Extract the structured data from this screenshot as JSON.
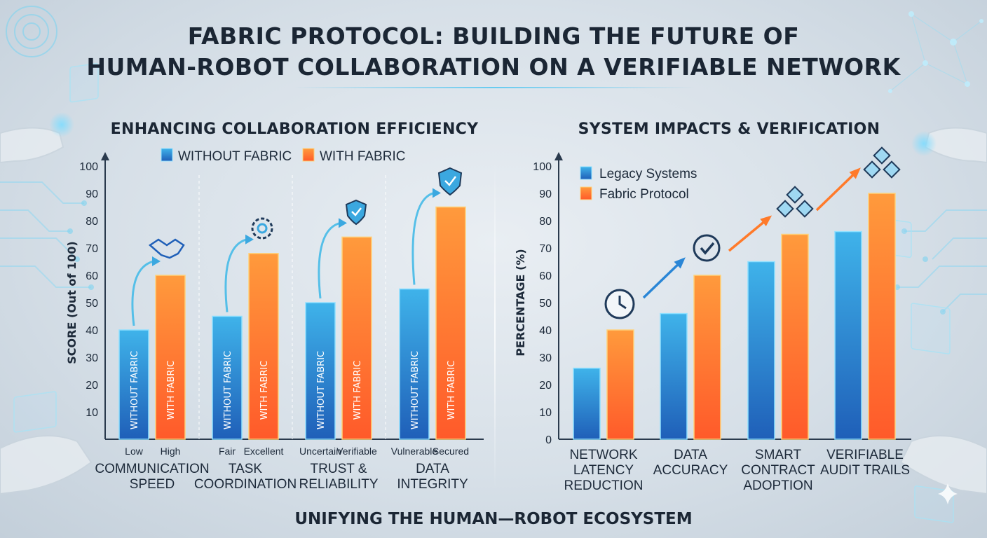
{
  "page": {
    "title_line_1": "FABRIC PROTOCOL: BUILDING THE FUTURE OF",
    "title_line_2": "HUMAN-ROBOT COLLABORATION ON A VERIFIABLE NETWORK",
    "footer": "UNIFYING THE HUMAN—ROBOT ECOSYSTEM"
  },
  "colors": {
    "blue": "#2a86d6",
    "orange": "#ff7a2a",
    "accent": "#5ac8f0"
  },
  "icons": [
    "handshake-icon",
    "gear-icon",
    "shield-check-icon",
    "shield-check-icon",
    "clock-icon",
    "check-icon",
    "blocks-icon",
    "blocks-icon"
  ],
  "chart_data": [
    {
      "type": "bar",
      "title": "ENHANCING COLLABORATION EFFICIENCY",
      "ylabel": "SCORE (Out of 100)",
      "xlabel": "",
      "ylim": [
        0,
        100
      ],
      "yticks": [
        10,
        20,
        30,
        40,
        50,
        60,
        70,
        80,
        90,
        100
      ],
      "legend_position": "top",
      "grid": false,
      "categories": [
        {
          "lines": [
            "COMMUNICATION",
            "SPEED"
          ],
          "sub_labels": [
            "Low",
            "High"
          ]
        },
        {
          "lines": [
            "TASK",
            "COORDINATION"
          ],
          "sub_labels": [
            "Fair",
            "Excellent"
          ]
        },
        {
          "lines": [
            "TRUST &",
            "RELIABILITY"
          ],
          "sub_labels": [
            "Uncertain",
            "Verifiable"
          ]
        },
        {
          "lines": [
            "DATA",
            "INTEGRITY"
          ],
          "sub_labels": [
            "Vulnerable",
            "Secured"
          ]
        }
      ],
      "series": [
        {
          "name": "WITHOUT FABRIC",
          "bar_label": "WITHOUT FABRIC",
          "color": "#2a86d6",
          "values": [
            40,
            45,
            50,
            55
          ]
        },
        {
          "name": "WITH FABRIC",
          "bar_label": "WITH FABRIC",
          "color": "#ff7a2a",
          "values": [
            60,
            68,
            74,
            85
          ]
        }
      ]
    },
    {
      "type": "bar",
      "title": "SYSTEM IMPACTS & VERIFICATION",
      "ylabel": "PERCENTAGE (%)",
      "xlabel": "",
      "ylim": [
        0,
        100
      ],
      "yticks": [
        0,
        10,
        20,
        30,
        40,
        50,
        60,
        70,
        80,
        90,
        100
      ],
      "legend_position": "top-left",
      "grid": false,
      "categories": [
        {
          "lines": [
            "NETWORK",
            "LATENCY",
            "REDUCTION"
          ]
        },
        {
          "lines": [
            "DATA",
            "ACCURACY"
          ]
        },
        {
          "lines": [
            "SMART",
            "CONTRACT",
            "ADOPTION"
          ]
        },
        {
          "lines": [
            "VERIFIABLE",
            "AUDIT TRAILS"
          ]
        }
      ],
      "series": [
        {
          "name": "Legacy Systems",
          "color": "#2a86d6",
          "values": [
            26,
            46,
            65,
            76
          ]
        },
        {
          "name": "Fabric Protocol",
          "color": "#ff7a2a",
          "values": [
            40,
            60,
            75,
            90
          ]
        }
      ]
    }
  ]
}
